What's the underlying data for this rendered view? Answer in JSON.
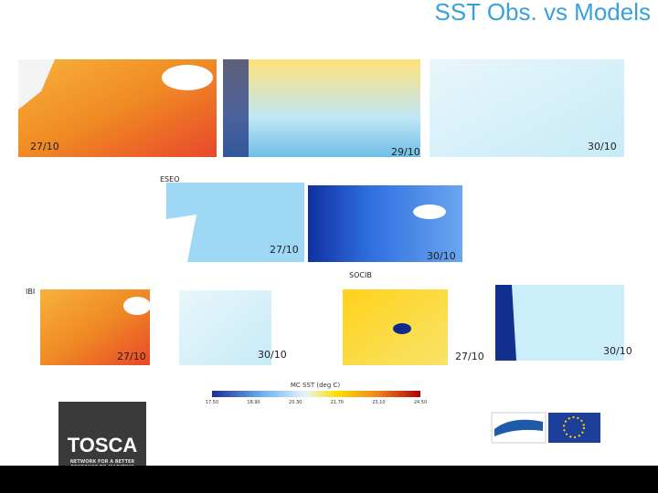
{
  "title": "SST Obs. vs Models",
  "row1": {
    "dates": [
      "27/10",
      "29/10",
      "30/10"
    ]
  },
  "row2": {
    "label": "ESEO",
    "dates": [
      "27/10",
      "30/10"
    ]
  },
  "row3": {
    "labels": [
      "SOCIB",
      "IBI"
    ],
    "dates": [
      "27/10",
      "30/10",
      "27/10",
      "30/10"
    ]
  },
  "colorbar": {
    "label": "MC SST (deg C)",
    "ticks": [
      "17.50",
      "18.90",
      "20.30",
      "21.70",
      "23.10",
      "24.50"
    ]
  },
  "logo": {
    "name": "TOSCA",
    "tagline": "NETWORK FOR A BETTER RESPONSE TO MARITIME ACCIDENTS"
  }
}
